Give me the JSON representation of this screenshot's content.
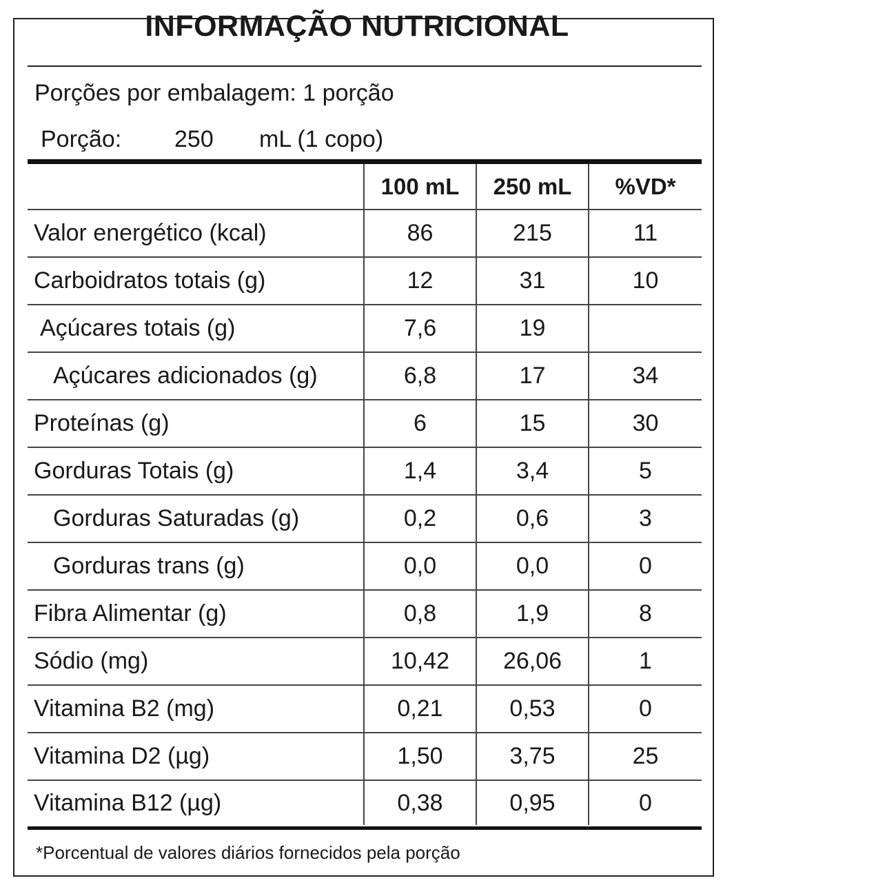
{
  "label": {
    "title": "INFORMAÇÃO NUTRICIONAL",
    "servings_per_package": "Porções por embalagem: 1 porção",
    "serving_label": "Porção:",
    "serving_amount": "250",
    "serving_unit": "mL (1 copo)",
    "columns": [
      "",
      "100 mL",
      "250 mL",
      "%VD*"
    ],
    "rows": [
      {
        "name": "Valor energético (kcal)",
        "per100": "86",
        "per250": "215",
        "vd": "11",
        "indent": 0
      },
      {
        "name": "Carboidratos totais (g)",
        "per100": "12",
        "per250": "31",
        "vd": "10",
        "indent": 0
      },
      {
        "name": "Açúcares totais (g)",
        "per100": "7,6",
        "per250": "19",
        "vd": "",
        "indent": 1
      },
      {
        "name": "Açúcares adicionados (g)",
        "per100": "6,8",
        "per250": "17",
        "vd": "34",
        "indent": 2
      },
      {
        "name": "Proteínas (g)",
        "per100": "6",
        "per250": "15",
        "vd": "30",
        "indent": 0
      },
      {
        "name": "Gorduras Totais (g)",
        "per100": "1,4",
        "per250": "3,4",
        "vd": "5",
        "indent": 0
      },
      {
        "name": "Gorduras Saturadas (g)",
        "per100": "0,2",
        "per250": "0,6",
        "vd": "3",
        "indent": 2
      },
      {
        "name": "Gorduras trans (g)",
        "per100": "0,0",
        "per250": "0,0",
        "vd": "0",
        "indent": 2
      },
      {
        "name": "Fibra Alimentar (g)",
        "per100": "0,8",
        "per250": "1,9",
        "vd": "8",
        "indent": 0
      },
      {
        "name": "Sódio (mg)",
        "per100": "10,42",
        "per250": "26,06",
        "vd": "1",
        "indent": 0
      },
      {
        "name": "Vitamina B2 (mg)",
        "per100": "0,21",
        "per250": "0,53",
        "vd": "0",
        "indent": 0
      },
      {
        "name": "Vitamina D2 (µg)",
        "per100": "1,50",
        "per250": "3,75",
        "vd": "25",
        "indent": 0
      },
      {
        "name": "Vitamina B12 (µg)",
        "per100": "0,38",
        "per250": "0,95",
        "vd": "0",
        "indent": 0
      }
    ],
    "footnote": "*Porcentual de valores diários fornecidos pela porção"
  }
}
